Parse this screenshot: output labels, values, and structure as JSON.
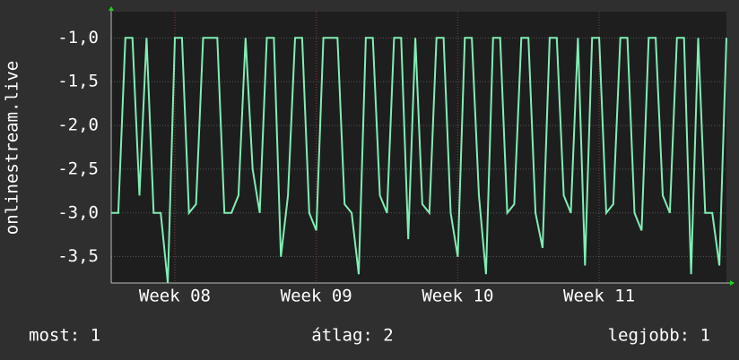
{
  "chart_data": {
    "type": "line",
    "y_label": "onlinestream.live",
    "x": [
      7.55,
      7.6,
      7.65,
      7.7,
      7.75,
      7.8,
      7.85,
      7.9,
      7.95,
      8,
      8.05,
      8.1,
      8.15,
      8.2,
      8.25,
      8.3,
      8.35,
      8.4,
      8.45,
      8.5,
      8.55,
      8.6,
      8.65,
      8.7,
      8.75,
      8.8,
      8.85,
      8.9,
      8.95,
      9,
      9.05,
      9.1,
      9.15,
      9.2,
      9.25,
      9.3,
      9.35,
      9.4,
      9.45,
      9.5,
      9.55,
      9.6,
      9.65,
      9.7,
      9.75,
      9.8,
      9.85,
      9.9,
      9.95,
      10,
      10.05,
      10.1,
      10.15,
      10.2,
      10.25,
      10.3,
      10.35,
      10.4,
      10.45,
      10.5,
      10.55,
      10.6,
      10.65,
      10.7,
      10.75,
      10.8,
      10.85,
      10.9,
      10.95,
      11,
      11.05,
      11.1,
      11.15,
      11.2,
      11.25,
      11.3,
      11.35,
      11.4,
      11.45,
      11.5,
      11.55,
      11.6,
      11.65,
      11.7,
      11.75,
      11.8,
      11.85,
      11.9
    ],
    "series": [
      {
        "color": "#80eeb4",
        "values": [
          -3,
          -3,
          -1,
          -1,
          -2.8,
          -1,
          -3,
          -3,
          -3.8,
          -1,
          -1,
          -3,
          -2.9,
          -1,
          -1,
          -1,
          -3,
          -3,
          -2.8,
          -1,
          -2.5,
          -3,
          -1,
          -1,
          -3.5,
          -2.8,
          -1,
          -1,
          -3,
          -3.2,
          -1,
          -1,
          -1,
          -2.9,
          -3,
          -3.7,
          -1,
          -1,
          -2.8,
          -3,
          -1,
          -1,
          -3.3,
          -1,
          -2.9,
          -3,
          -1,
          -1,
          -3,
          -3.5,
          -1,
          -1,
          -2.8,
          -3.7,
          -1,
          -1,
          -3,
          -2.9,
          -1,
          -1,
          -3,
          -3.4,
          -1,
          -1,
          -2.8,
          -3,
          -1,
          -3.6,
          -1,
          -1,
          -3,
          -2.9,
          -1,
          -1,
          -3,
          -3.2,
          -1,
          -1,
          -2.8,
          -3,
          -1,
          -1,
          -3.7,
          -1,
          -3,
          -3,
          -3.6,
          -1
        ]
      }
    ],
    "xlim": [
      7.55,
      11.9
    ],
    "xticks": [
      {
        "value": 8,
        "label": "Week 08"
      },
      {
        "value": 9,
        "label": "Week 09"
      },
      {
        "value": 10,
        "label": "Week 10"
      },
      {
        "value": 11,
        "label": "Week 11"
      }
    ],
    "ylim": [
      -3.8,
      -0.7
    ],
    "yticks": [
      {
        "value": -1,
        "label": "-1,0"
      },
      {
        "value": -1.5,
        "label": "-1,5"
      },
      {
        "value": -2,
        "label": "-2,0"
      },
      {
        "value": -2.5,
        "label": "-2,5"
      },
      {
        "value": -3,
        "label": "-3,0"
      },
      {
        "value": -3.5,
        "label": "-3,5"
      }
    ],
    "grid": true,
    "footer": [
      "most: 1",
      "átlag: 2",
      "legjobb: 1"
    ]
  }
}
